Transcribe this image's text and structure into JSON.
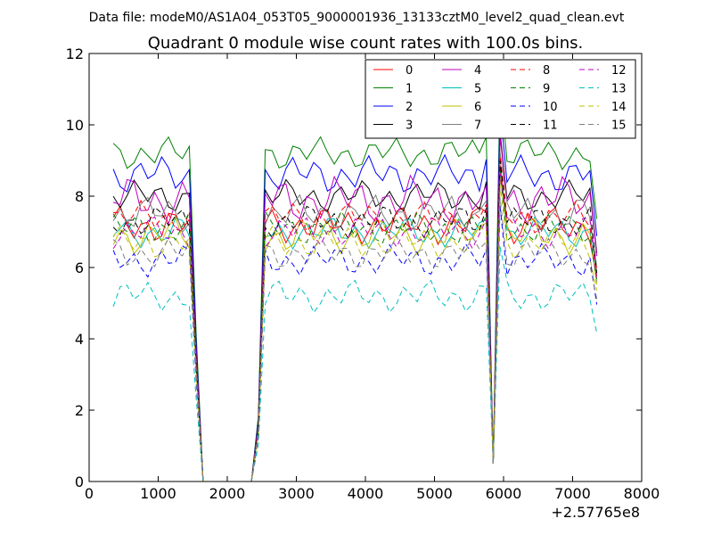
{
  "header": {
    "data_file": "Data file: modeM0/AS1A04_053T05_9000001936_13133cztM0_level2_quad_clean.evt"
  },
  "chart_data": {
    "type": "line",
    "title": "Quadrant 0 module wise count rates with 100.0s bins.",
    "xlabel": "",
    "ylabel": "",
    "x_offset_label": "+2.57765e8",
    "xlim": [
      0,
      8000
    ],
    "ylim": [
      0,
      12
    ],
    "x_ticks": [
      0,
      1000,
      2000,
      3000,
      4000,
      5000,
      6000,
      7000,
      8000
    ],
    "y_ticks": [
      0,
      2,
      4,
      6,
      8,
      10,
      12
    ],
    "grid": false,
    "legend_placement": "top-right",
    "legend_columns": 4,
    "x": [
      350,
      450,
      550,
      650,
      750,
      850,
      950,
      1050,
      1150,
      1250,
      1350,
      1450,
      1550,
      1650,
      1750,
      1850,
      1950,
      2050,
      2150,
      2250,
      2350,
      2450,
      2550,
      2650,
      2750,
      2850,
      2950,
      3050,
      3150,
      3250,
      3350,
      3450,
      3550,
      3650,
      3750,
      3850,
      3950,
      4050,
      4150,
      4250,
      4350,
      4450,
      4550,
      4650,
      4750,
      4850,
      4950,
      5050,
      5150,
      5250,
      5350,
      5450,
      5550,
      5650,
      5750,
      5850,
      5950,
      6050,
      6150,
      6250,
      6350,
      6450,
      6550,
      6650,
      6750,
      6850,
      6950,
      7050,
      7150,
      7250,
      7350
    ],
    "series": [
      {
        "name": "0",
        "color": "#ff0000",
        "dash": "solid",
        "mean": 7.2,
        "amp": 0.35
      },
      {
        "name": "1",
        "color": "#008000",
        "dash": "solid",
        "mean": 9.2,
        "amp": 0.3
      },
      {
        "name": "2",
        "color": "#0000ff",
        "dash": "solid",
        "mean": 8.6,
        "amp": 0.35
      },
      {
        "name": "3",
        "color": "#000000",
        "dash": "solid",
        "mean": 8.0,
        "amp": 0.3
      },
      {
        "name": "4",
        "color": "#bf00bf",
        "dash": "solid",
        "mean": 7.9,
        "amp": 0.45
      },
      {
        "name": "5",
        "color": "#00bfbf",
        "dash": "solid",
        "mean": 7.0,
        "amp": 0.3
      },
      {
        "name": "6",
        "color": "#bfbf00",
        "dash": "solid",
        "mean": 6.9,
        "amp": 0.35
      },
      {
        "name": "7",
        "color": "#808080",
        "dash": "solid",
        "mean": 7.5,
        "amp": 0.35
      },
      {
        "name": "8",
        "color": "#ff0000",
        "dash": "dashed",
        "mean": 7.4,
        "amp": 0.3
      },
      {
        "name": "9",
        "color": "#008000",
        "dash": "dashed",
        "mean": 7.1,
        "amp": 0.3
      },
      {
        "name": "10",
        "color": "#0000ff",
        "dash": "dashed",
        "mean": 6.2,
        "amp": 0.3
      },
      {
        "name": "11",
        "color": "#000000",
        "dash": "dashed",
        "mean": 7.3,
        "amp": 0.3
      },
      {
        "name": "12",
        "color": "#bf00bf",
        "dash": "dashed",
        "mean": 7.0,
        "amp": 0.3
      },
      {
        "name": "13",
        "color": "#00bfbf",
        "dash": "dashed",
        "mean": 5.2,
        "amp": 0.3
      },
      {
        "name": "14",
        "color": "#bfbf00",
        "dash": "dashed",
        "mean": 6.7,
        "amp": 0.3
      },
      {
        "name": "15",
        "color": "#808080",
        "dash": "dashed",
        "mean": 6.4,
        "amp": 0.3
      }
    ],
    "drops": [
      {
        "x": 1650,
        "y": 0
      },
      {
        "x": 1750,
        "y": 0
      },
      {
        "x": 1850,
        "y": 0
      },
      {
        "x": 1950,
        "y": 0
      },
      {
        "x": 2050,
        "y": 0
      },
      {
        "x": 2150,
        "y": 0
      },
      {
        "x": 2250,
        "y": 0
      },
      {
        "x": 2350,
        "y": 0
      },
      {
        "x": 5850,
        "y": 0.5
      }
    ]
  }
}
